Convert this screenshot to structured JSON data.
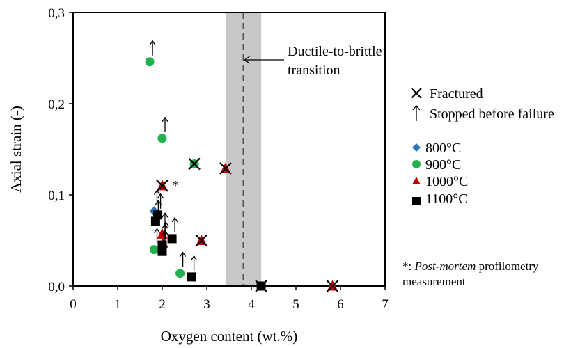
{
  "chart_data": {
    "type": "scatter",
    "xlabel": "Oxygen content (wt.%)",
    "ylabel": "Axial strain (-)",
    "xlim": [
      0,
      7
    ],
    "ylim": [
      0,
      0.3
    ],
    "x_ticks": [
      "0",
      "1",
      "2",
      "3",
      "4",
      "5",
      "6",
      "7"
    ],
    "y_ticks": [
      "0,0",
      "0,1",
      "0,2",
      "0,3"
    ],
    "transition": {
      "label_line1": "Ductile-to-brittle",
      "label_line2": "transition",
      "x": 3.82,
      "band": [
        3.42,
        4.22
      ]
    },
    "legend": {
      "markers": [
        {
          "symbol": "×",
          "label": "Fractured"
        },
        {
          "symbol": "↑",
          "label": "Stopped before failure"
        }
      ],
      "series_entries": [
        "800°C",
        "900°C",
        "1000°C",
        "1100°C"
      ]
    },
    "footnote": {
      "prefix": "*: ",
      "italic": "Post-mortem",
      "rest": " profilometry",
      "line2": "measurement"
    },
    "asterisk_label": "*",
    "series": [
      {
        "name": "800°C",
        "marker": "diamond",
        "color": "#2e75b6",
        "points": [
          {
            "x": 1.82,
            "y": 0.082,
            "state": "stopped"
          }
        ]
      },
      {
        "name": "900°C",
        "marker": "circle",
        "color": "#22b14c",
        "points": [
          {
            "x": 1.72,
            "y": 0.246,
            "state": "stopped"
          },
          {
            "x": 2.0,
            "y": 0.162,
            "state": "stopped"
          },
          {
            "x": 2.72,
            "y": 0.134,
            "state": "fractured"
          },
          {
            "x": 1.82,
            "y": 0.04,
            "state": "stopped"
          },
          {
            "x": 2.4,
            "y": 0.014,
            "state": "stopped"
          }
        ]
      },
      {
        "name": "1000°C",
        "marker": "triangle",
        "color": "#c00000",
        "points": [
          {
            "x": 2.0,
            "y": 0.11,
            "state": "fractured",
            "asterisk": true
          },
          {
            "x": 3.42,
            "y": 0.129,
            "state": "fractured"
          },
          {
            "x": 2.88,
            "y": 0.05,
            "state": "fractured"
          },
          {
            "x": 2.0,
            "y": 0.057,
            "state": "stopped"
          },
          {
            "x": 2.02,
            "y": 0.047,
            "state": "stopped"
          },
          {
            "x": 5.82,
            "y": 0.0,
            "state": "fractured"
          }
        ]
      },
      {
        "name": "1100°C",
        "marker": "square",
        "color": "#000000",
        "points": [
          {
            "x": 1.9,
            "y": 0.078,
            "state": "stopped"
          },
          {
            "x": 1.85,
            "y": 0.071,
            "state": "stopped"
          },
          {
            "x": 2.0,
            "y": 0.045,
            "state": "stopped"
          },
          {
            "x": 2.0,
            "y": 0.038,
            "state": "stopped"
          },
          {
            "x": 2.22,
            "y": 0.052,
            "state": "stopped"
          },
          {
            "x": 2.65,
            "y": 0.01,
            "state": "stopped"
          },
          {
            "x": 4.22,
            "y": 0.0,
            "state": "fractured"
          }
        ]
      }
    ]
  }
}
